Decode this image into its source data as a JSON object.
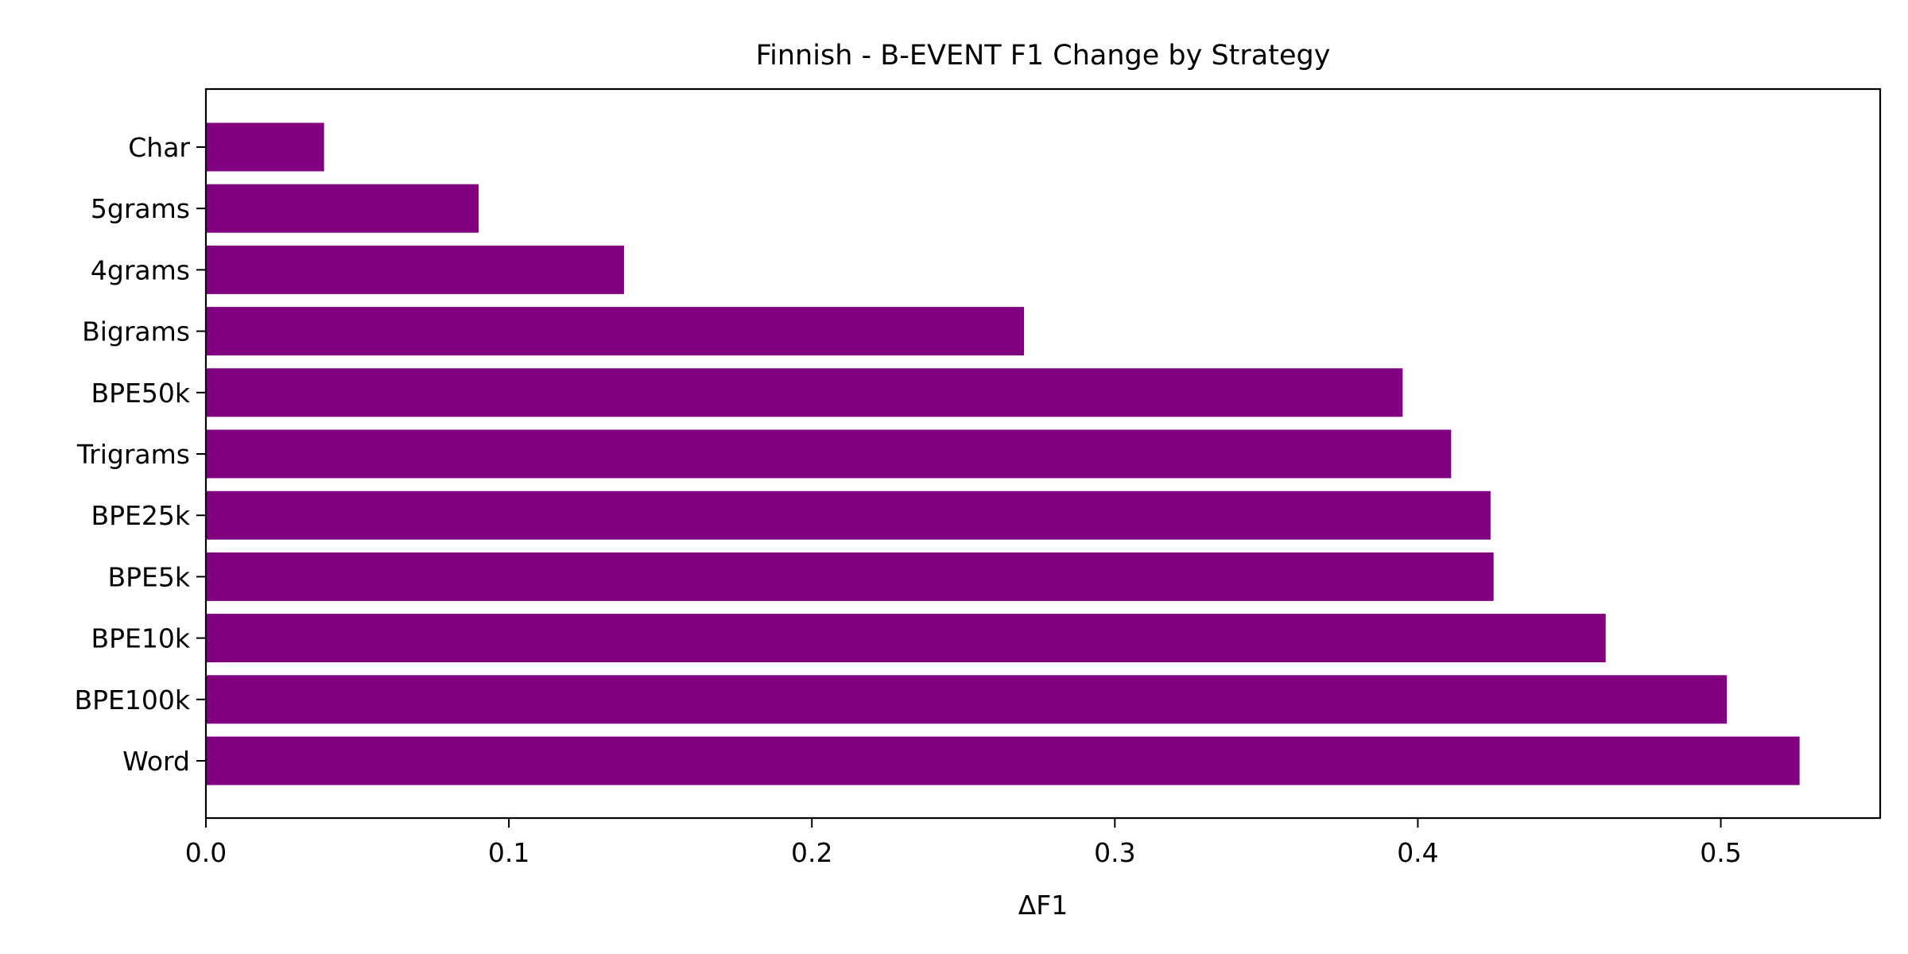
{
  "chart_data": {
    "type": "bar",
    "orientation": "horizontal",
    "title": "Finnish - B-EVENT F1 Change by Strategy",
    "xlabel": "ΔF1",
    "ylabel": "",
    "categories": [
      "Char",
      "5grams",
      "4grams",
      "Bigrams",
      "BPE50k",
      "Trigrams",
      "BPE25k",
      "BPE5k",
      "BPE10k",
      "BPE100k",
      "Word"
    ],
    "values": [
      0.039,
      0.09,
      0.138,
      0.27,
      0.395,
      0.411,
      0.424,
      0.425,
      0.462,
      0.502,
      0.526
    ],
    "xlim": [
      0.0,
      0.5526
    ],
    "xticks": [
      0.0,
      0.1,
      0.2,
      0.3,
      0.4,
      0.5
    ],
    "xtick_labels": [
      "0.0",
      "0.1",
      "0.2",
      "0.3",
      "0.4",
      "0.5"
    ],
    "grid": false,
    "legend": false,
    "bar_color": "#800080"
  }
}
